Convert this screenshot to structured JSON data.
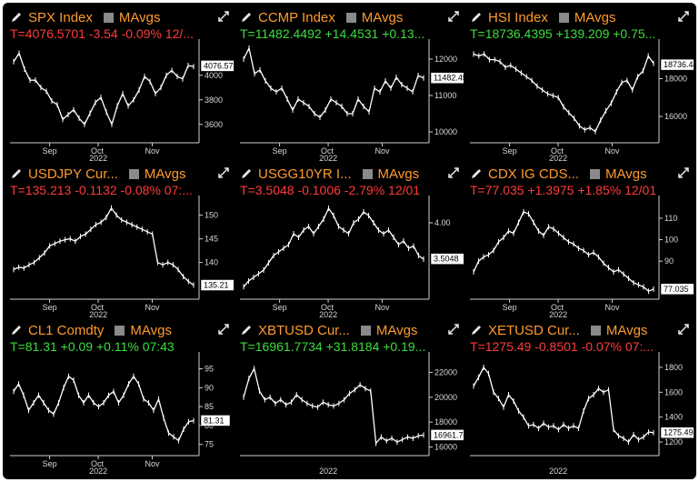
{
  "panels": [
    {
      "security": "SPX Index",
      "mavgs": "MAvgs",
      "quote": "T=4076.5701 -3.54 -0.09% 12/...",
      "quote_color": "neg",
      "y_ticks": [
        "4000",
        "3800",
        "3600"
      ],
      "last_price": "4076.57",
      "x_ticks": [
        "Sep",
        "Oct",
        "Nov"
      ],
      "x_year": "2022",
      "chart_data": {
        "type": "line",
        "ylim": [
          3480,
          4250
        ],
        "values": [
          4110,
          4180,
          4050,
          3960,
          3960,
          3900,
          3870,
          3790,
          3760,
          3640,
          3680,
          3720,
          3650,
          3600,
          3690,
          3780,
          3820,
          3700,
          3600,
          3750,
          3850,
          3750,
          3800,
          3880,
          3990,
          3950,
          3850,
          3900,
          4000,
          4040,
          3990,
          3970,
          4080,
          4070
        ]
      }
    },
    {
      "security": "CCMP Index",
      "mavgs": "MAvgs",
      "quote": "T=11482.4492 +14.4531 +0.13...",
      "quote_color": "pos",
      "y_ticks": [
        "12000",
        "11000",
        "10000"
      ],
      "last_price": "11482.45",
      "x_ticks": [
        "Sep",
        "Oct",
        "Nov"
      ],
      "x_year": "2022",
      "chart_data": {
        "type": "line",
        "ylim": [
          9800,
          12400
        ],
        "values": [
          12000,
          12300,
          11600,
          11700,
          11400,
          11200,
          11100,
          11200,
          10900,
          10600,
          10900,
          10800,
          10700,
          10500,
          10400,
          10600,
          10900,
          10800,
          10700,
          10500,
          10500,
          10900,
          10700,
          10550,
          11200,
          11100,
          11400,
          11200,
          11500,
          11300,
          11200,
          11100,
          11550,
          11480
        ]
      }
    },
    {
      "security": "HSI Index",
      "mavgs": "MAvgs",
      "quote": "T=18736.4395 +139.209 +0.75...",
      "quote_color": "pos",
      "y_ticks": [
        "18000",
        "16000"
      ],
      "last_price": "18736.44",
      "x_ticks": [
        "Sep",
        "Oct",
        "Nov"
      ],
      "x_year": "2022",
      "chart_data": {
        "type": "line",
        "ylim": [
          14800,
          19800
        ],
        "values": [
          19300,
          19200,
          19300,
          19000,
          19000,
          18900,
          18600,
          18700,
          18500,
          18300,
          18100,
          17900,
          17600,
          17400,
          17200,
          17100,
          17000,
          16500,
          16200,
          15900,
          15500,
          15300,
          15400,
          15200,
          15800,
          16300,
          16700,
          17300,
          17800,
          17900,
          17400,
          18100,
          18400,
          19200,
          18800
        ]
      }
    },
    {
      "security": "USDJPY Cur...",
      "mavgs": "MAvgs",
      "quote": "T=135.213 -0.1132 -0.08% 07:...",
      "quote_color": "neg",
      "y_ticks": [
        "150",
        "145",
        "140"
      ],
      "last_price": "135.21",
      "x_ticks": [
        "Sep",
        "Oct",
        "Nov"
      ],
      "x_year": "2022",
      "chart_data": {
        "type": "line",
        "ylim": [
          133,
          153
        ],
        "values": [
          138.5,
          139,
          138.8,
          139.5,
          140,
          141,
          142,
          143.5,
          144,
          144.5,
          144.8,
          145,
          144.5,
          145.5,
          146,
          147,
          148,
          148.5,
          149.5,
          151.5,
          150,
          149,
          148.5,
          148,
          147.5,
          147,
          146.5,
          146,
          140,
          139.5,
          140,
          139.5,
          138.5,
          137,
          136,
          135.2
        ]
      }
    },
    {
      "security": "USGG10YR I...",
      "mavgs": "MAvgs",
      "quote": "T=3.5048 -0.1006 -2.79% 12/01",
      "quote_color": "neg",
      "y_ticks": [
        "4.00"
      ],
      "last_price": "3.5048",
      "x_ticks": [
        "Sep",
        "Oct",
        "Nov"
      ],
      "x_year": "2022",
      "chart_data": {
        "type": "line",
        "ylim": [
          3.0,
          4.3
        ],
        "values": [
          3.12,
          3.2,
          3.25,
          3.3,
          3.35,
          3.45,
          3.55,
          3.6,
          3.65,
          3.7,
          3.85,
          3.8,
          3.9,
          3.95,
          3.85,
          3.95,
          4.05,
          4.2,
          4.1,
          3.95,
          3.9,
          3.85,
          4.0,
          4.05,
          4.15,
          4.1,
          4.0,
          3.9,
          3.85,
          3.9,
          3.8,
          3.7,
          3.75,
          3.65,
          3.68,
          3.55,
          3.5
        ]
      }
    },
    {
      "security": "CDX IG CDS...",
      "mavgs": "MAvgs",
      "quote": "T=77.035 +1.3975 +1.85% 12/01",
      "quote_color": "neg",
      "y_ticks": [
        "110",
        "100",
        "90"
      ],
      "last_price": "77.035",
      "x_ticks": [
        "Sep",
        "Oct",
        "Nov"
      ],
      "x_year": "2022",
      "chart_data": {
        "type": "line",
        "ylim": [
          74,
          118
        ],
        "values": [
          85,
          90,
          92,
          93,
          95,
          99,
          101,
          104,
          103,
          108,
          113,
          112,
          108,
          104,
          102,
          106,
          105,
          103,
          101,
          99,
          98,
          96,
          95,
          93,
          94,
          92,
          89,
          87,
          85,
          86,
          84,
          82,
          80,
          79,
          78,
          76,
          77
        ]
      }
    },
    {
      "security": "CL1 Comdty",
      "mavgs": "MAvgs",
      "quote": "T=81.31 +0.09 +0.11% 07:43",
      "quote_color": "pos",
      "y_ticks": [
        "95",
        "90",
        "85",
        "80",
        "75"
      ],
      "last_price": "81.31",
      "x_ticks": [
        "Sep",
        "Oct",
        "Nov"
      ],
      "x_year": "2022",
      "chart_data": {
        "type": "line",
        "ylim": [
          73,
          98
        ],
        "values": [
          89,
          91,
          88,
          84,
          86,
          88,
          86,
          84,
          83,
          86,
          90,
          93,
          92,
          88,
          86,
          88,
          86,
          85,
          86,
          88,
          89,
          86,
          88,
          91,
          93,
          91,
          87,
          86,
          84,
          87,
          82,
          78,
          77,
          76,
          79,
          81,
          81.3
        ]
      }
    },
    {
      "security": "XBTUSD Cur...",
      "mavgs": "MAvgs",
      "quote": "T=16961.7734 +31.8184 +0.19...",
      "quote_color": "pos",
      "y_ticks": [
        "22000",
        "20000",
        "18000",
        "16000"
      ],
      "last_price": "16961.77",
      "x_ticks": [],
      "x_year": "2022",
      "chart_data": {
        "type": "line",
        "ylim": [
          15600,
          23200
        ],
        "values": [
          20000,
          21500,
          22300,
          20500,
          19800,
          20000,
          19500,
          19800,
          19400,
          19600,
          20200,
          19800,
          19500,
          19300,
          19200,
          19600,
          19400,
          19300,
          19500,
          19800,
          20300,
          20600,
          21000,
          20700,
          20500,
          16300,
          16800,
          16500,
          16700,
          16400,
          16600,
          16800,
          16700,
          16900,
          16960
        ]
      }
    },
    {
      "security": "XETUSD Cur...",
      "mavgs": "MAvgs",
      "quote": "T=1275.49 -0.8501 -0.07% 07:...",
      "quote_color": "neg",
      "y_ticks": [
        "1800",
        "1600",
        "1400",
        "1200"
      ],
      "last_price": "1275.49",
      "x_ticks": [],
      "x_year": "2022",
      "chart_data": {
        "type": "line",
        "ylim": [
          1120,
          1880
        ],
        "values": [
          1650,
          1720,
          1800,
          1750,
          1600,
          1550,
          1480,
          1580,
          1530,
          1450,
          1400,
          1330,
          1340,
          1310,
          1350,
          1320,
          1330,
          1300,
          1340,
          1310,
          1330,
          1310,
          1450,
          1550,
          1580,
          1630,
          1600,
          1620,
          1300,
          1250,
          1230,
          1200,
          1260,
          1220,
          1240,
          1280,
          1275
        ]
      }
    }
  ]
}
